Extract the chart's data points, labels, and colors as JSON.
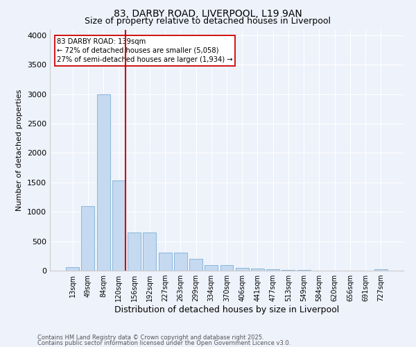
{
  "title": "83, DARBY ROAD, LIVERPOOL, L19 9AN",
  "subtitle": "Size of property relative to detached houses in Liverpool",
  "xlabel": "Distribution of detached houses by size in Liverpool",
  "ylabel": "Number of detached properties",
  "categories": [
    "13sqm",
    "49sqm",
    "84sqm",
    "120sqm",
    "156sqm",
    "192sqm",
    "227sqm",
    "263sqm",
    "299sqm",
    "334sqm",
    "370sqm",
    "406sqm",
    "441sqm",
    "477sqm",
    "513sqm",
    "549sqm",
    "584sqm",
    "620sqm",
    "656sqm",
    "691sqm",
    "727sqm"
  ],
  "values": [
    60,
    1100,
    3000,
    1530,
    650,
    650,
    310,
    310,
    200,
    90,
    90,
    50,
    30,
    20,
    15,
    10,
    5,
    5,
    5,
    5,
    20
  ],
  "bar_color": "#c5d9f0",
  "bar_edge_color": "#7bafd4",
  "vline_color": "#cc0000",
  "vline_x_index": 3,
  "annotation_text_line1": "83 DARBY ROAD: 139sqm",
  "annotation_text_line2": "← 72% of detached houses are smaller (5,058)",
  "annotation_text_line3": "27% of semi-detached houses are larger (1,934) →",
  "annotation_box_facecolor": "#ffffff",
  "annotation_box_edgecolor": "#cc0000",
  "ylim": [
    0,
    4100
  ],
  "yticks": [
    0,
    500,
    1000,
    1500,
    2000,
    2500,
    3000,
    3500,
    4000
  ],
  "footnote1": "Contains HM Land Registry data © Crown copyright and database right 2025.",
  "footnote2": "Contains public sector information licensed under the Open Government Licence v3.0.",
  "bg_color": "#eef2fb",
  "grid_color": "#ffffff",
  "title_fontsize": 10,
  "subtitle_fontsize": 9,
  "axis_label_fontsize": 8,
  "tick_fontsize": 7,
  "footnote_fontsize": 6
}
